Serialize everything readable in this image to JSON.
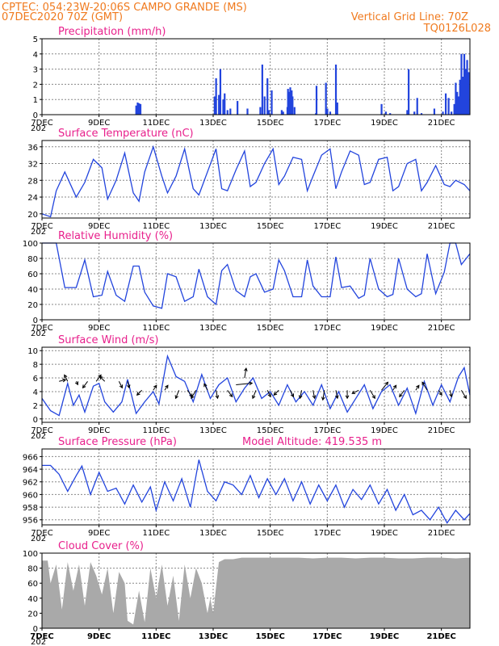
{
  "header": {
    "line1": "CPTEC:   054:23W-20:06S   CAMPO GRANDE (MS)",
    "line2": "07DEC2020 70Z (GMT)",
    "right1": "Vertical Grid Line: 70Z",
    "right2": "TQ0126L028"
  },
  "colors": {
    "series": "#2244dd",
    "title": "#e8208c",
    "header": "#f07a1e",
    "cloud": "#a9a9a9",
    "wind_arrow": "#000000"
  },
  "x_ticks": [
    "7DEC",
    "9DEC",
    "11DEC",
    "13DEC",
    "15DEC",
    "17DEC",
    "19DEC",
    "21DEC"
  ],
  "x_tick_days": [
    7,
    9,
    11,
    13,
    15,
    17,
    19,
    21
  ],
  "x_range": [
    7.0,
    22.0
  ],
  "x_year_stub": "202",
  "chart_data": [
    {
      "id": "precip",
      "type": "bar",
      "title": "Precipitation  (mm/h)",
      "ylim": [
        0,
        5
      ],
      "yticks": [
        0,
        1,
        2,
        3,
        4,
        5
      ],
      "x": [
        10.3,
        10.35,
        10.4,
        10.45,
        13.05,
        13.1,
        13.2,
        13.25,
        13.35,
        13.4,
        13.5,
        13.6,
        13.85,
        14.2,
        14.65,
        14.72,
        14.8,
        14.9,
        14.95,
        15.05,
        15.4,
        15.45,
        15.6,
        15.62,
        15.65,
        15.7,
        15.75,
        15.78,
        15.85,
        16.6,
        16.62,
        16.95,
        17.0,
        17.1,
        17.3,
        17.35,
        18.9,
        19.05,
        19.2,
        19.8,
        19.85,
        20.05,
        20.15,
        20.3,
        20.75,
        21.05,
        21.15,
        21.25,
        21.35,
        21.45,
        21.5,
        21.55,
        21.6,
        21.65,
        21.7,
        21.75,
        21.8,
        21.85,
        21.9,
        21.95
      ],
      "values": [
        0.6,
        0.8,
        0.75,
        0.7,
        1.2,
        2.4,
        1.3,
        3.0,
        1.0,
        1.4,
        0.3,
        0.4,
        0.9,
        0.4,
        0.5,
        3.3,
        1.2,
        2.4,
        0.3,
        1.6,
        0.3,
        0.2,
        0.5,
        1.7,
        1.5,
        1.8,
        1.6,
        1.2,
        0.5,
        0.1,
        1.9,
        2.1,
        0.4,
        0.2,
        3.3,
        0.8,
        0.7,
        0.2,
        0.1,
        0.3,
        3.0,
        0.2,
        1.1,
        0.1,
        0.4,
        0.2,
        1.4,
        1.1,
        0.2,
        0.7,
        2.1,
        1.5,
        1.2,
        2.3,
        4.0,
        2.5,
        4.0,
        3.0,
        3.6,
        2.8
      ]
    },
    {
      "id": "temp",
      "type": "line",
      "title": "Surface Temperature (nC)",
      "ylim": [
        19,
        37.5
      ],
      "yticks": [
        20,
        24,
        28,
        32,
        36
      ],
      "x": [
        7.0,
        7.3,
        7.5,
        7.8,
        8.2,
        8.5,
        8.8,
        9.1,
        9.3,
        9.6,
        9.9,
        10.2,
        10.4,
        10.6,
        10.9,
        11.2,
        11.4,
        11.7,
        12.0,
        12.3,
        12.5,
        12.8,
        13.1,
        13.3,
        13.5,
        13.8,
        14.1,
        14.3,
        14.5,
        14.8,
        15.1,
        15.3,
        15.5,
        15.8,
        16.1,
        16.3,
        16.5,
        16.8,
        17.1,
        17.3,
        17.5,
        17.8,
        18.1,
        18.3,
        18.5,
        18.8,
        19.1,
        19.3,
        19.5,
        19.8,
        20.1,
        20.3,
        20.5,
        20.8,
        21.1,
        21.3,
        21.5,
        21.8,
        22.0
      ],
      "values": [
        20,
        19.3,
        25.5,
        30,
        24,
        27.5,
        33,
        31,
        23.5,
        28,
        34.5,
        25,
        23,
        30,
        36,
        29,
        25,
        29,
        35.5,
        26,
        24.5,
        30,
        35.5,
        26,
        25.5,
        30.5,
        35,
        26.5,
        27.5,
        32,
        35.5,
        27,
        29,
        33.5,
        33,
        25.5,
        29,
        34,
        35.5,
        26,
        30,
        35,
        34,
        27,
        27.5,
        33,
        33.5,
        25.5,
        26.5,
        32,
        33,
        25.5,
        27.5,
        31.5,
        27,
        26.5,
        28,
        27,
        25.5
      ]
    },
    {
      "id": "rh",
      "type": "line",
      "title": "Relative Humidity  (%)",
      "ylim": [
        0,
        100
      ],
      "yticks": [
        0,
        20,
        40,
        60,
        80,
        100
      ],
      "x": [
        7.0,
        7.5,
        7.8,
        8.2,
        8.5,
        8.8,
        9.1,
        9.3,
        9.6,
        9.9,
        10.2,
        10.4,
        10.6,
        10.9,
        11.2,
        11.4,
        11.7,
        12.0,
        12.3,
        12.5,
        12.8,
        13.1,
        13.3,
        13.5,
        13.8,
        14.1,
        14.3,
        14.5,
        14.8,
        15.1,
        15.3,
        15.5,
        15.8,
        16.1,
        16.3,
        16.5,
        16.8,
        17.1,
        17.3,
        17.5,
        17.8,
        18.1,
        18.3,
        18.5,
        18.8,
        19.1,
        19.3,
        19.5,
        19.8,
        20.1,
        20.3,
        20.5,
        20.8,
        21.1,
        21.3,
        21.5,
        21.7,
        22.0
      ],
      "values": [
        100,
        100,
        42,
        42,
        78,
        30,
        32,
        63,
        32,
        24,
        70,
        70,
        36,
        18,
        15,
        60,
        56,
        24,
        30,
        66,
        30,
        20,
        64,
        72,
        38,
        30,
        56,
        60,
        36,
        40,
        78,
        64,
        30,
        30,
        78,
        44,
        30,
        30,
        82,
        42,
        44,
        28,
        32,
        80,
        40,
        30,
        33,
        80,
        40,
        30,
        34,
        86,
        34,
        62,
        100,
        100,
        72,
        86
      ]
    },
    {
      "id": "wind",
      "type": "line",
      "title": "Surface Wind  (m/s)",
      "ylim": [
        -0.5,
        10.5
      ],
      "yticks": [
        0,
        2,
        4,
        6,
        8,
        10
      ],
      "x": [
        7.0,
        7.3,
        7.6,
        7.9,
        8.1,
        8.3,
        8.5,
        8.8,
        9.0,
        9.2,
        9.5,
        9.8,
        10.0,
        10.3,
        10.6,
        10.9,
        11.1,
        11.4,
        11.7,
        12.0,
        12.3,
        12.6,
        12.9,
        13.2,
        13.5,
        13.8,
        14.1,
        14.4,
        14.7,
        15.0,
        15.3,
        15.6,
        15.9,
        16.2,
        16.5,
        16.8,
        17.1,
        17.4,
        17.7,
        18.0,
        18.3,
        18.6,
        18.9,
        19.2,
        19.5,
        19.8,
        20.1,
        20.4,
        20.7,
        21.0,
        21.3,
        21.6,
        21.8,
        22.0
      ],
      "values": [
        3,
        1.2,
        0.5,
        5.2,
        2.0,
        3.5,
        1.0,
        4.8,
        5.2,
        2.5,
        1.0,
        2.5,
        5.8,
        0.8,
        2.5,
        4.0,
        2.2,
        9.2,
        6.2,
        5.5,
        2.5,
        6.5,
        3.0,
        5.0,
        6.0,
        2.5,
        4.5,
        6.0,
        3.0,
        4.0,
        2.0,
        5.0,
        2.5,
        4.0,
        2.0,
        5.0,
        1.5,
        4.0,
        1.0,
        3.0,
        5.0,
        1.5,
        4.0,
        5.0,
        2.0,
        4.5,
        0.8,
        5.5,
        2.0,
        5.0,
        2.5,
        6.2,
        7.5,
        3.5
      ],
      "arrows": {
        "x": [
          7.6,
          7.9,
          8.2,
          8.6,
          8.9,
          9.2,
          9.7,
          10.0,
          10.5,
          10.9,
          11.3,
          11.8,
          12.1,
          12.4,
          12.8,
          13.1,
          13.5,
          13.8,
          14.1,
          14.5,
          14.9,
          15.3,
          15.7,
          16.1,
          16.5,
          16.9,
          17.3,
          17.7,
          18.1,
          18.5,
          18.9,
          19.3,
          19.7,
          20.1,
          20.5,
          20.9,
          21.3,
          21.7
        ],
        "y": [
          5.5,
          5.5,
          5.5,
          5.5,
          5.5,
          5.5,
          5.5,
          5.5,
          4.2,
          4.2,
          4.2,
          4.2,
          4.2,
          4.2,
          4.2,
          4.2,
          4.2,
          5.0,
          6.0,
          4.2,
          4.2,
          4.2,
          4.2,
          4.2,
          4.2,
          4.2,
          4.2,
          4.2,
          4.2,
          4.2,
          4.2,
          4.2,
          4.2,
          4.2,
          4.2,
          4.2,
          4.2,
          4.2
        ],
        "dx": [
          8,
          -4,
          2,
          -6,
          6,
          -6,
          4,
          2,
          -6,
          4,
          4,
          -4,
          6,
          -6,
          -4,
          2,
          6,
          20,
          2,
          -4,
          4,
          -6,
          4,
          -2,
          2,
          -2,
          2,
          0,
          -8,
          6,
          8,
          4,
          -6,
          4,
          -6,
          4,
          2,
          6
        ],
        "dy": [
          -2,
          -8,
          4,
          8,
          -8,
          -6,
          8,
          8,
          6,
          -6,
          -6,
          10,
          8,
          10,
          -8,
          10,
          8,
          -2,
          -12,
          10,
          8,
          6,
          8,
          10,
          10,
          12,
          10,
          10,
          4,
          10,
          -10,
          -6,
          8,
          -6,
          -10,
          6,
          8,
          10
        ]
      }
    },
    {
      "id": "pres",
      "type": "line",
      "title": "Surface Pressure (hPa)",
      "subtitle": "Model Altitude: 419.535  m",
      "ylim": [
        955.2,
        967.2
      ],
      "yticks": [
        956,
        958,
        960,
        962,
        964,
        966
      ],
      "x": [
        7.0,
        7.3,
        7.6,
        7.9,
        8.2,
        8.4,
        8.7,
        9.0,
        9.3,
        9.6,
        9.9,
        10.2,
        10.5,
        10.8,
        11.0,
        11.3,
        11.6,
        11.9,
        12.2,
        12.5,
        12.8,
        13.1,
        13.4,
        13.7,
        14.0,
        14.3,
        14.6,
        14.9,
        15.2,
        15.5,
        15.8,
        16.1,
        16.4,
        16.7,
        17.0,
        17.3,
        17.6,
        17.9,
        18.2,
        18.5,
        18.8,
        19.1,
        19.4,
        19.7,
        20.0,
        20.3,
        20.6,
        20.9,
        21.2,
        21.5,
        21.8,
        22.0
      ],
      "values": [
        964.6,
        964.6,
        963.2,
        960.5,
        963.0,
        964.5,
        960.0,
        963.5,
        960.5,
        961.0,
        958.5,
        961.5,
        958.8,
        961.2,
        957.5,
        962.0,
        959.0,
        962.5,
        958.0,
        965.5,
        960.5,
        959.0,
        962.0,
        961.5,
        960.0,
        963.0,
        959.5,
        962.5,
        960.0,
        962.5,
        959.0,
        962.0,
        958.5,
        961.5,
        959.0,
        961.5,
        958.0,
        960.8,
        959.2,
        961.5,
        958.5,
        960.8,
        957.5,
        960.0,
        956.8,
        957.5,
        956.0,
        958.0,
        955.5,
        957.5,
        956.0,
        957.0
      ]
    },
    {
      "id": "cloud",
      "type": "area",
      "title": "Cloud Cover  (%)",
      "ylim": [
        0,
        100
      ],
      "yticks": [
        0,
        20,
        40,
        60,
        80,
        100
      ],
      "x": [
        7.0,
        7.2,
        7.3,
        7.5,
        7.7,
        7.9,
        8.1,
        8.3,
        8.5,
        8.7,
        8.9,
        9.1,
        9.3,
        9.5,
        9.7,
        9.9,
        10.0,
        10.2,
        10.4,
        10.6,
        10.8,
        11.0,
        11.2,
        11.4,
        11.6,
        11.8,
        12.0,
        12.2,
        12.4,
        12.6,
        12.8,
        12.9,
        13.0,
        13.2,
        13.4,
        13.7,
        14.0,
        14.5,
        15.0,
        15.5,
        16.0,
        16.5,
        17.0,
        17.5,
        18.0,
        18.5,
        19.0,
        19.5,
        20.0,
        20.5,
        21.0,
        21.5,
        22.0
      ],
      "values": [
        90,
        90,
        60,
        85,
        25,
        88,
        50,
        85,
        30,
        88,
        70,
        45,
        80,
        20,
        75,
        60,
        10,
        5,
        50,
        8,
        80,
        40,
        85,
        30,
        70,
        10,
        85,
        40,
        80,
        60,
        20,
        40,
        20,
        88,
        92,
        92,
        94,
        94,
        94,
        94,
        94,
        93,
        94,
        94,
        93,
        94,
        94,
        93,
        93,
        94,
        94,
        93,
        94
      ]
    }
  ]
}
